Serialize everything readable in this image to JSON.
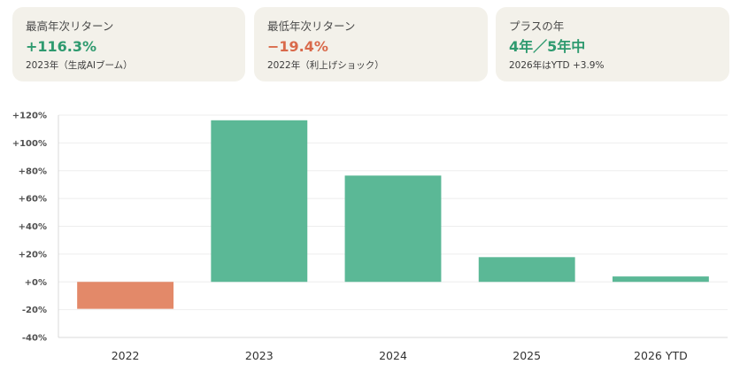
{
  "cards": [
    {
      "label": "最高年次リターン",
      "value": "+116.3%",
      "note": "2023年（生成AIブーム）",
      "tone": "green"
    },
    {
      "label": "最低年次リターン",
      "value": "−19.4%",
      "note": "2022年（利上げショック）",
      "tone": "red"
    },
    {
      "label": "プラスの年",
      "value": "4年／5年中",
      "note": "2026年はYTD +3.9%",
      "tone": "green"
    }
  ],
  "colors": {
    "positive": "#5bb896",
    "negative": "#e38969",
    "grid": "#eeeeee",
    "axis": "#d8d8d8"
  },
  "chart_data": {
    "type": "bar",
    "categories": [
      "2022",
      "2023",
      "2024",
      "2025",
      "2026 YTD"
    ],
    "values": [
      -19.4,
      116.3,
      76.5,
      17.8,
      3.9
    ],
    "ylim": [
      -40,
      120
    ],
    "yticks": [
      120,
      100,
      80,
      60,
      40,
      20,
      0,
      -20,
      -40
    ],
    "ytick_labels": [
      "+120%",
      "+100%",
      "+80%",
      "+60%",
      "+40%",
      "+20%",
      "+0%",
      "-20%",
      "-40%"
    ],
    "grid": true,
    "title": "",
    "xlabel": "",
    "ylabel": ""
  }
}
